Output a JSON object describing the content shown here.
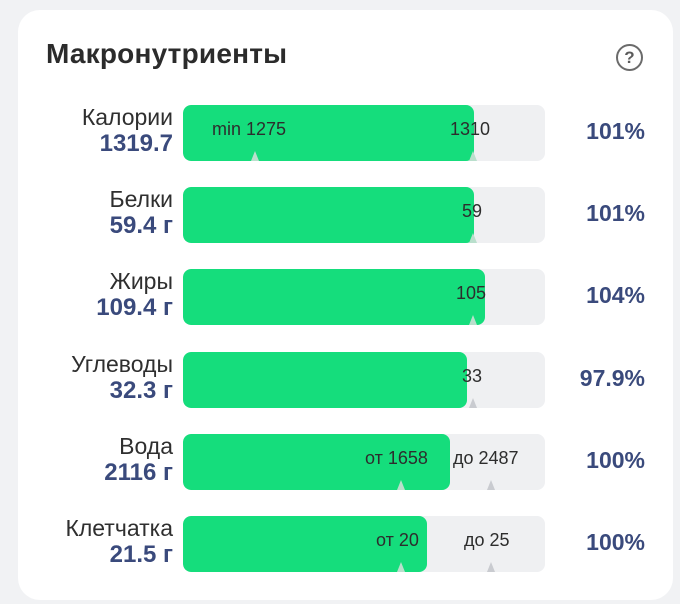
{
  "header": {
    "title": "Макронутриенты",
    "help_icon_text": "?"
  },
  "rows": [
    {
      "name": "Калории",
      "amount": "1319.7",
      "percent": "101%",
      "fill": 0.805,
      "min_label": "min 1275",
      "target_label": "1310"
    },
    {
      "name": "Белки",
      "amount": "59.4 г",
      "percent": "101%",
      "fill": 0.805,
      "target_label": "59"
    },
    {
      "name": "Жиры",
      "amount": "109.4 г",
      "percent": "104%",
      "fill": 0.835,
      "target_label": "105"
    },
    {
      "name": "Углеводы",
      "amount": "32.3 г",
      "percent": "97.9%",
      "fill": 0.785,
      "target_label": "33"
    },
    {
      "name": "Вода",
      "amount": "2116 г",
      "percent": "100%",
      "fill": 0.737,
      "from_label": "от 1658",
      "to_label": "до 2487"
    },
    {
      "name": "Клетчатка",
      "amount": "21.5 г",
      "percent": "100%",
      "fill": 0.674,
      "from_label": "от 20",
      "to_label": "до 25"
    }
  ],
  "colors": {
    "fill": "#15dd7c",
    "track": "#eff0f2",
    "accent_text": "#3a4a7c"
  }
}
